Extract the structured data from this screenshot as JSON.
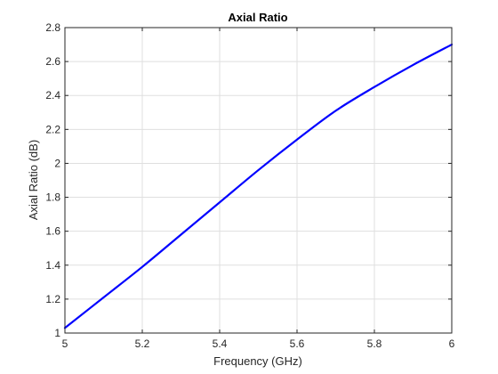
{
  "chart_data": {
    "type": "line",
    "title": "Axial Ratio",
    "xlabel": "Frequency (GHz)",
    "ylabel": "Axial Ratio (dB)",
    "xlim": [
      5,
      6
    ],
    "ylim": [
      1,
      2.8
    ],
    "xticks": [
      5,
      5.2,
      5.4,
      5.6,
      5.8,
      6
    ],
    "xtick_labels": [
      "5",
      "5.2",
      "5.4",
      "5.6",
      "5.8",
      "6"
    ],
    "yticks": [
      1,
      1.2,
      1.4,
      1.6,
      1.8,
      2,
      2.2,
      2.4,
      2.6,
      2.8
    ],
    "ytick_labels": [
      "1",
      "1.2",
      "1.4",
      "1.6",
      "1.8",
      "2",
      "2.2",
      "2.4",
      "2.6",
      "2.8"
    ],
    "grid": true,
    "series": [
      {
        "color": "#0000ff",
        "x": [
          5.0,
          5.1,
          5.2,
          5.3,
          5.4,
          5.5,
          5.6,
          5.7,
          5.8,
          5.9,
          6.0
        ],
        "y": [
          1.03,
          1.21,
          1.39,
          1.58,
          1.77,
          1.96,
          2.14,
          2.31,
          2.45,
          2.58,
          2.7
        ]
      }
    ]
  }
}
